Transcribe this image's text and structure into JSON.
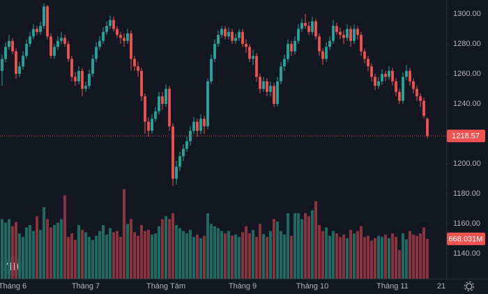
{
  "chart_data": {
    "type": "candlestick",
    "open": [
      1262,
      1270,
      1278,
      1282,
      1275,
      1260,
      1265,
      1272,
      1280,
      1285,
      1290,
      1288,
      1292,
      1305,
      1285,
      1272,
      1278,
      1282,
      1284,
      1280,
      1270,
      1258,
      1255,
      1262,
      1250,
      1252,
      1260,
      1270,
      1278,
      1282,
      1288,
      1292,
      1296,
      1290,
      1286,
      1284,
      1282,
      1287,
      1270,
      1265,
      1262,
      1245,
      1228,
      1222,
      1230,
      1235,
      1245,
      1240,
      1250,
      1225,
      1190,
      1198,
      1205,
      1210,
      1215,
      1222,
      1228,
      1222,
      1230,
      1225,
      1255,
      1270,
      1280,
      1286,
      1290,
      1285,
      1288,
      1282,
      1284,
      1288,
      1280,
      1278,
      1270,
      1272,
      1258,
      1250,
      1255,
      1248,
      1252,
      1240,
      1255,
      1265,
      1270,
      1280,
      1275,
      1282,
      1290,
      1294,
      1292,
      1288,
      1295,
      1285,
      1275,
      1270,
      1278,
      1282,
      1292,
      1288,
      1286,
      1284,
      1290,
      1282,
      1290,
      1286,
      1275,
      1270,
      1265,
      1258,
      1252,
      1255,
      1260,
      1258,
      1262,
      1255,
      1248,
      1242,
      1258,
      1262,
      1255,
      1250,
      1245,
      1242,
      1230
    ],
    "high": [
      1273,
      1281,
      1286,
      1284,
      1277,
      1268,
      1275,
      1283,
      1288,
      1293,
      1292,
      1295,
      1307,
      1306,
      1287,
      1280,
      1285,
      1288,
      1286,
      1282,
      1272,
      1261,
      1265,
      1264,
      1255,
      1263,
      1273,
      1281,
      1285,
      1291,
      1295,
      1299,
      1298,
      1292,
      1288,
      1287,
      1290,
      1289,
      1272,
      1268,
      1264,
      1247,
      1231,
      1233,
      1238,
      1248,
      1248,
      1253,
      1252,
      1227,
      1202,
      1208,
      1213,
      1218,
      1225,
      1231,
      1230,
      1233,
      1232,
      1257,
      1273,
      1283,
      1289,
      1292,
      1292,
      1291,
      1290,
      1287,
      1290,
      1290,
      1283,
      1280,
      1276,
      1274,
      1260,
      1258,
      1257,
      1255,
      1254,
      1258,
      1268,
      1273,
      1283,
      1282,
      1285,
      1293,
      1297,
      1300,
      1295,
      1298,
      1297,
      1287,
      1277,
      1281,
      1285,
      1296,
      1294,
      1291,
      1289,
      1293,
      1292,
      1293,
      1292,
      1288,
      1277,
      1272,
      1267,
      1260,
      1258,
      1263,
      1262,
      1265,
      1264,
      1257,
      1250,
      1261,
      1266,
      1264,
      1257,
      1252,
      1247,
      1244,
      1231
    ],
    "low": [
      1252,
      1268,
      1276,
      1273,
      1257,
      1258,
      1263,
      1270,
      1278,
      1283,
      1286,
      1286,
      1290,
      1283,
      1270,
      1270,
      1276,
      1280,
      1278,
      1268,
      1255,
      1252,
      1253,
      1245,
      1248,
      1250,
      1258,
      1268,
      1276,
      1280,
      1286,
      1290,
      1288,
      1284,
      1280,
      1278,
      1280,
      1262,
      1262,
      1258,
      1242,
      1220,
      1218,
      1220,
      1228,
      1233,
      1236,
      1238,
      1222,
      1185,
      1186,
      1195,
      1202,
      1208,
      1212,
      1220,
      1218,
      1220,
      1220,
      1223,
      1253,
      1268,
      1278,
      1284,
      1283,
      1283,
      1280,
      1280,
      1282,
      1278,
      1274,
      1268,
      1266,
      1255,
      1247,
      1248,
      1245,
      1245,
      1238,
      1238,
      1253,
      1262,
      1268,
      1272,
      1273,
      1280,
      1288,
      1290,
      1286,
      1286,
      1283,
      1272,
      1266,
      1268,
      1276,
      1280,
      1286,
      1283,
      1280,
      1282,
      1278,
      1280,
      1283,
      1272,
      1267,
      1262,
      1255,
      1249,
      1250,
      1253,
      1255,
      1256,
      1252,
      1245,
      1240,
      1240,
      1256,
      1252,
      1247,
      1242,
      1238,
      1230,
      1217
    ],
    "close": [
      1270,
      1278,
      1282,
      1275,
      1260,
      1265,
      1272,
      1280,
      1285,
      1290,
      1288,
      1292,
      1305,
      1285,
      1272,
      1278,
      1282,
      1284,
      1280,
      1270,
      1258,
      1255,
      1262,
      1250,
      1252,
      1260,
      1270,
      1278,
      1282,
      1288,
      1292,
      1296,
      1290,
      1286,
      1284,
      1282,
      1287,
      1270,
      1265,
      1262,
      1245,
      1228,
      1222,
      1230,
      1235,
      1245,
      1240,
      1250,
      1225,
      1190,
      1198,
      1205,
      1210,
      1215,
      1222,
      1228,
      1222,
      1230,
      1225,
      1255,
      1270,
      1280,
      1286,
      1290,
      1285,
      1288,
      1282,
      1284,
      1288,
      1280,
      1278,
      1270,
      1272,
      1258,
      1250,
      1255,
      1248,
      1252,
      1240,
      1255,
      1265,
      1270,
      1280,
      1275,
      1282,
      1290,
      1294,
      1292,
      1288,
      1295,
      1285,
      1275,
      1270,
      1278,
      1282,
      1292,
      1288,
      1286,
      1284,
      1290,
      1282,
      1290,
      1286,
      1275,
      1270,
      1265,
      1258,
      1252,
      1255,
      1260,
      1258,
      1262,
      1255,
      1248,
      1242,
      1258,
      1262,
      1255,
      1250,
      1245,
      1242,
      1232,
      1218.57
    ],
    "volume": {
      "values": [
        1000,
        940,
        1000,
        880,
        950,
        760,
        700,
        860,
        900,
        800,
        1050,
        820,
        1200,
        1000,
        860,
        900,
        940,
        1000,
        1400,
        700,
        760,
        650,
        900,
        820,
        780,
        700,
        650,
        720,
        800,
        900,
        740,
        850,
        780,
        800,
        700,
        1500,
        920,
        1000,
        780,
        720,
        900,
        800,
        820,
        740,
        760,
        880,
        1000,
        1050,
        1000,
        1100,
        900,
        850,
        800,
        760,
        820,
        700,
        740,
        680,
        720,
        1100,
        920,
        880,
        850,
        800,
        760,
        800,
        720,
        740,
        700,
        780,
        880,
        760,
        820,
        700,
        920,
        750,
        700,
        800,
        1000,
        960,
        800,
        740,
        1100,
        720,
        1100,
        1100,
        1000,
        1100,
        1050,
        1150,
        1300,
        900,
        800,
        860,
        720,
        800,
        760,
        700,
        740,
        680,
        820,
        760,
        800,
        880,
        700,
        720,
        640,
        680,
        720,
        700,
        740,
        680,
        760,
        700,
        480,
        760,
        660,
        800,
        740,
        720,
        760,
        860,
        668.031
      ],
      "value_labels": {
        "122": "668.031M"
      },
      "ylim": [
        0,
        2000
      ]
    },
    "xlim": [
      -0.6,
      127.4
    ],
    "xticks": [
      {
        "value": 3,
        "label": "Tháng 6"
      },
      {
        "value": 24,
        "label": "Tháng 7"
      },
      {
        "value": 47,
        "label": "Tháng Tám"
      },
      {
        "value": 69,
        "label": "Tháng 9"
      },
      {
        "value": 89,
        "label": "Tháng 10"
      },
      {
        "value": 112,
        "label": "Tháng 11"
      },
      {
        "value": 126,
        "label": "21"
      }
    ],
    "ylim": [
      1123.3,
      1309.3
    ],
    "yticks": [
      {
        "value": 1140,
        "label": "1140.00"
      },
      {
        "value": 1160,
        "label": "1160.00"
      },
      {
        "value": 1180,
        "label": "1180.00"
      },
      {
        "value": 1200,
        "label": "1200.00"
      },
      {
        "value": 1240,
        "label": "1240.00"
      },
      {
        "value": 1260,
        "label": "1260.00"
      },
      {
        "value": 1280,
        "label": "1280.00"
      },
      {
        "value": 1300,
        "label": "1300.00"
      }
    ],
    "grid": false,
    "up_color": "#26a69a",
    "down_color": "#ef5350",
    "volume_up_color": "#1e6b64",
    "volume_down_color": "#8a3440"
  }
}
